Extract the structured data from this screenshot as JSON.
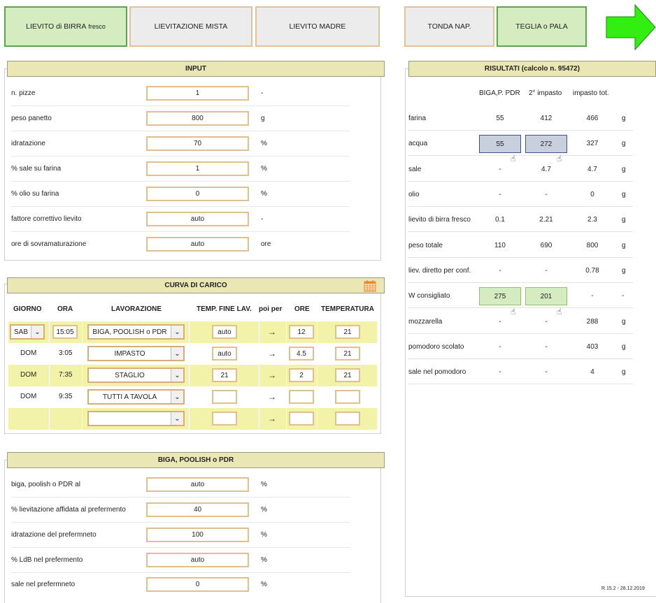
{
  "tabs": [
    {
      "label": "LIEVITO di BIRRA",
      "suffix": "fresco"
    },
    {
      "label": "LIEVITAZIONE MISTA"
    },
    {
      "label": "LIEVITO MADRE"
    },
    {
      "label": "TONDA NAP."
    },
    {
      "label": "TEGLIA o PALA"
    }
  ],
  "input": {
    "title": "INPUT",
    "rows": [
      {
        "label": "n. pizze",
        "value": "1",
        "unit": "-"
      },
      {
        "label": "peso panetto",
        "value": "800",
        "unit": "g"
      },
      {
        "label": "idratazione",
        "value": "70",
        "unit": "%"
      },
      {
        "label": "% sale su farina",
        "value": "1",
        "unit": "%"
      },
      {
        "label": "% olio su farina",
        "value": "0",
        "unit": "%"
      },
      {
        "label": "fattore correttivo lievito",
        "value": "auto",
        "unit": "-"
      },
      {
        "label": "ore di sovramaturazione",
        "value": "auto",
        "unit": "ore"
      }
    ]
  },
  "curva": {
    "title": "CURVA DI CARICO",
    "headers": [
      "GIORNO",
      "ORA",
      "LAVORAZIONE",
      "TEMP. FINE LAV.",
      "poi per",
      "ORE",
      "TEMPERATURA"
    ],
    "rows": [
      {
        "giorno": "SAB",
        "ora": "15:05",
        "lavorazione": "BIGA, POOLISH o PDR",
        "temp": "auto",
        "poi": "→",
        "ore": "12",
        "temperatura": "21"
      },
      {
        "giorno": "DOM",
        "ora": "3:05",
        "lavorazione": "IMPASTO",
        "temp": "auto",
        "poi": "→",
        "ore": "4.5",
        "temperatura": "21"
      },
      {
        "giorno": "DOM",
        "ora": "7:35",
        "lavorazione": "STAGLIO",
        "temp": "21",
        "poi": "→",
        "ore": "2",
        "temperatura": "21"
      },
      {
        "giorno": "DOM",
        "ora": "9:35",
        "lavorazione": "TUTTI A TAVOLA",
        "temp": "",
        "poi": "→",
        "ore": "",
        "temperatura": ""
      },
      {
        "giorno": "",
        "ora": "",
        "lavorazione": "",
        "temp": "",
        "poi": "→",
        "ore": "",
        "temperatura": ""
      }
    ]
  },
  "biga": {
    "title": "BIGA, POOLISH o PDR",
    "rows": [
      {
        "label": "biga, poolish o PDR al",
        "value": "auto",
        "unit": "%"
      },
      {
        "label": "% lievitazione affidata al prefermento",
        "value": "40",
        "unit": "%"
      },
      {
        "label": "idratazione del prefermneto",
        "value": "100",
        "unit": "%"
      },
      {
        "label": "% LdB nel prefermento",
        "value": "auto",
        "unit": "%"
      },
      {
        "label": "sale nel prefermneto",
        "value": "0",
        "unit": "%"
      }
    ]
  },
  "risultati": {
    "title": "RISULTATI (calcolo n. 95472)",
    "columns": [
      "BIGA,P. PDR",
      "2° impasto",
      "impasto tot."
    ],
    "rows": [
      {
        "label": "farina",
        "v1": "55",
        "v2": "412",
        "v3": "466",
        "unit": "g"
      },
      {
        "label": "acqua",
        "v1": "55",
        "v2": "272",
        "v3": "327",
        "unit": "g"
      },
      {
        "label": "sale",
        "v1": "-",
        "v2": "4.7",
        "v3": "4.7",
        "unit": "g"
      },
      {
        "label": "olio",
        "v1": "-",
        "v2": "-",
        "v3": "0",
        "unit": "g"
      },
      {
        "label": "lievito di birra fresco",
        "v1": "0.1",
        "v2": "2.21",
        "v3": "2.3",
        "unit": "g"
      },
      {
        "label": "peso totale",
        "v1": "110",
        "v2": "690",
        "v3": "800",
        "unit": "g"
      },
      {
        "label": "liev. diretto per conf.",
        "v1": "-",
        "v2": "-",
        "v3": "0.78",
        "unit": "g"
      },
      {
        "label": "W consigliato",
        "v1": "275",
        "v2": "201",
        "v3": "-",
        "unit": "-"
      },
      {
        "label": "mozzarella",
        "v1": "-",
        "v2": "-",
        "v3": "288",
        "unit": "g"
      },
      {
        "label": "pomodoro scolato",
        "v1": "-",
        "v2": "-",
        "v3": "403",
        "unit": "g"
      },
      {
        "label": "sale nel pomodoro",
        "v1": "-",
        "v2": "-",
        "v3": "4",
        "unit": "g"
      }
    ],
    "version": "R.15.2 - 28.12.2019"
  },
  "colors": {
    "accent_green": "#33ee11",
    "header_bg": "#ebe7b4",
    "field_border": "#e2c08e"
  }
}
